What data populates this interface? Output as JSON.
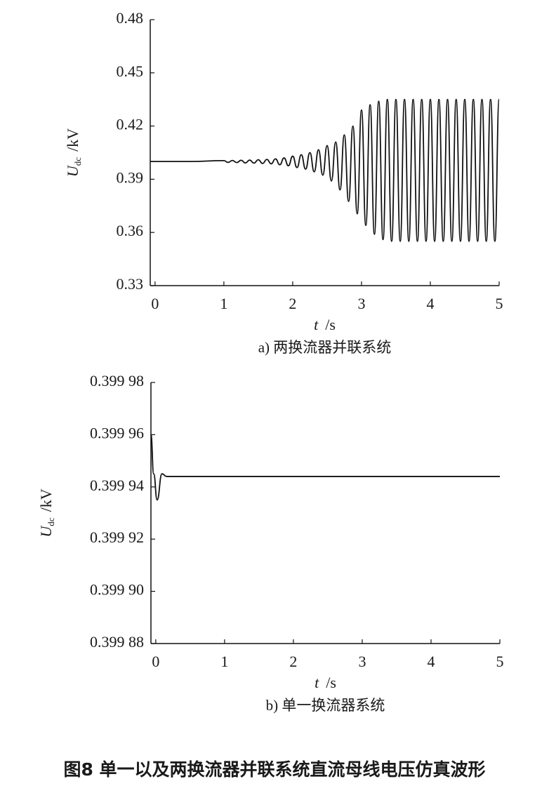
{
  "chart_data": [
    {
      "type": "line",
      "subtitle": "a) 两换流器并联系统",
      "ylabel_symbol": "U",
      "ylabel_subscript": "dc",
      "ylabel_unit": "/kV",
      "xlabel_symbol": "t",
      "xlabel_unit": "/s",
      "xlim": [
        -0.07,
        5.0
      ],
      "xticks": [
        0,
        1,
        2,
        3,
        4,
        5
      ],
      "ylim": [
        0.33,
        0.48
      ],
      "yticks": [
        0.33,
        0.36,
        0.39,
        0.42,
        0.45,
        0.48
      ],
      "color": "#111111",
      "x": [
        -0.07,
        0.5,
        1.0,
        1.0625,
        1.125,
        1.1875,
        1.25,
        1.3125,
        1.375,
        1.4375,
        1.5,
        1.5625,
        1.625,
        1.6875,
        1.75,
        1.8125,
        1.875,
        1.9375,
        2.0,
        2.0625,
        2.125,
        2.1875,
        2.25,
        2.3125,
        2.375,
        2.4375,
        2.5,
        2.5625,
        2.625,
        2.6875,
        2.75,
        2.8125,
        2.875,
        2.9375,
        3.0,
        3.0625,
        3.125,
        3.1875,
        3.25,
        3.3125,
        3.375,
        3.4375,
        3.5,
        3.5625,
        3.625,
        3.6875,
        3.75,
        3.8125,
        3.875,
        3.9375,
        4.0,
        4.0625,
        4.125,
        4.1875,
        4.25,
        4.3125,
        4.375,
        4.4375,
        4.5,
        4.5625,
        4.625,
        4.6875,
        4.75,
        4.8125,
        4.875,
        4.9375,
        5.0
      ],
      "values": [
        0.4,
        0.4,
        0.4005,
        0.3995,
        0.4006,
        0.3994,
        0.4007,
        0.3992,
        0.4008,
        0.3991,
        0.401,
        0.3989,
        0.4012,
        0.3987,
        0.4015,
        0.3982,
        0.402,
        0.3976,
        0.403,
        0.3966,
        0.4038,
        0.3957,
        0.405,
        0.3942,
        0.4066,
        0.3923,
        0.409,
        0.389,
        0.411,
        0.384,
        0.415,
        0.3775,
        0.42,
        0.3705,
        0.429,
        0.364,
        0.432,
        0.359,
        0.434,
        0.356,
        0.435,
        0.355,
        0.435,
        0.355,
        0.435,
        0.355,
        0.435,
        0.355,
        0.435,
        0.355,
        0.435,
        0.355,
        0.435,
        0.355,
        0.435,
        0.355,
        0.435,
        0.355,
        0.435,
        0.355,
        0.435,
        0.355,
        0.435,
        0.355,
        0.435,
        0.355,
        0.435
      ]
    },
    {
      "type": "line",
      "subtitle": "b) 单一换流器系统",
      "ylabel_symbol": "U",
      "ylabel_subscript": "dc",
      "ylabel_unit": "/kV",
      "xlabel_symbol": "t",
      "xlabel_unit": "/s",
      "xlim": [
        -0.07,
        5.0
      ],
      "xticks": [
        0,
        1,
        2,
        3,
        4,
        5
      ],
      "ylim": [
        0.39988,
        0.39998
      ],
      "yticks": [
        {
          "value": 0.39988,
          "label": "0.399 88"
        },
        {
          "value": 0.3999,
          "label": "0.399 90"
        },
        {
          "value": 0.39992,
          "label": "0.399 92"
        },
        {
          "value": 0.39994,
          "label": "0.399 94"
        },
        {
          "value": 0.39996,
          "label": "0.399 96"
        },
        {
          "value": 0.39998,
          "label": "0.399 98"
        }
      ],
      "color": "#111111",
      "x": [
        -0.07,
        -0.03,
        0.02,
        0.09,
        0.16,
        0.3,
        5.0
      ],
      "values": [
        0.39996,
        0.399945,
        0.399935,
        0.399945,
        0.399944,
        0.399944,
        0.399944
      ]
    }
  ],
  "figure_caption": "图8  单一以及两换流器并联系统直流母线电压仿真波形"
}
